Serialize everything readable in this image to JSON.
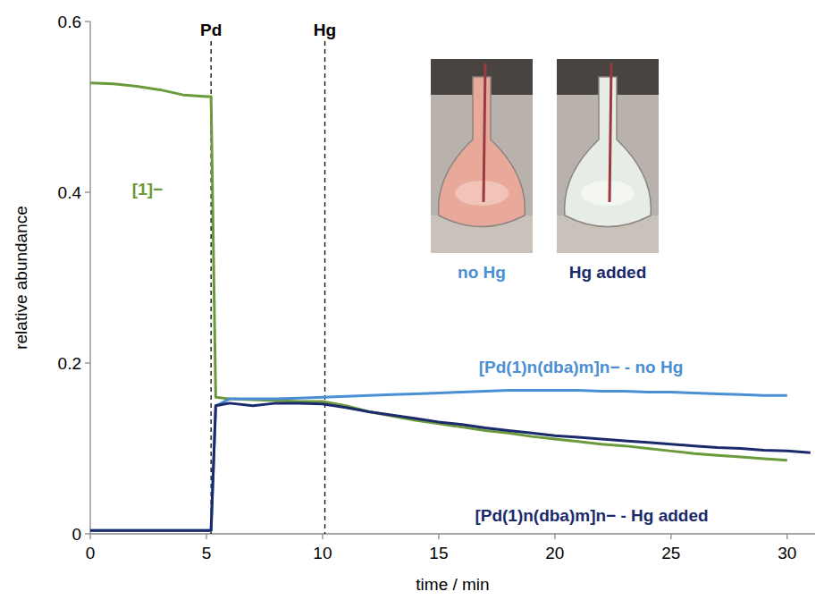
{
  "chart_data": {
    "type": "line",
    "x_label": "time / min",
    "y_label": "relative abundance",
    "xlim": [
      0,
      31.2
    ],
    "xticks": [
      0,
      5,
      10,
      15,
      20,
      25,
      30
    ],
    "ylim": [
      0,
      0.6
    ],
    "yticks": [
      0,
      0.2,
      0.4,
      0.6
    ],
    "grid": false,
    "x": [
      0,
      1,
      2,
      3,
      4,
      5,
      5.2,
      5.4,
      6,
      7,
      8,
      9,
      10,
      11,
      12,
      13,
      14,
      15,
      16,
      17,
      18,
      19,
      20,
      21,
      22,
      23,
      24,
      25,
      26,
      27,
      28,
      29,
      30,
      31
    ],
    "series": [
      {
        "name": "[1]−",
        "color": "#6a9a3c",
        "values": [
          0.528,
          0.527,
          0.524,
          0.52,
          0.514,
          0.512,
          0.512,
          0.16,
          0.158,
          0.157,
          0.156,
          0.155,
          0.155,
          0.15,
          0.143,
          0.138,
          0.133,
          0.129,
          0.125,
          0.121,
          0.118,
          0.114,
          0.111,
          0.108,
          0.105,
          0.103,
          0.1,
          0.097,
          0.094,
          0.092,
          0.09,
          0.088,
          0.086,
          null
        ]
      },
      {
        "name": "[Pd(1)n(dba)m]n− - no Hg",
        "color": "#4a8fd4",
        "values": [
          0.004,
          0.004,
          0.004,
          0.004,
          0.004,
          0.004,
          0.004,
          0.15,
          0.158,
          0.158,
          0.158,
          0.159,
          0.16,
          0.161,
          0.162,
          0.163,
          0.164,
          0.165,
          0.166,
          0.167,
          0.168,
          0.168,
          0.168,
          0.168,
          0.167,
          0.167,
          0.166,
          0.166,
          0.165,
          0.164,
          0.163,
          0.162,
          0.162,
          null
        ]
      },
      {
        "name": "[Pd(1)n(dba)m]n− - Hg added",
        "color": "#1b2a6b",
        "values": [
          0.004,
          0.004,
          0.004,
          0.004,
          0.004,
          0.004,
          0.004,
          0.15,
          0.153,
          0.15,
          0.153,
          0.153,
          0.152,
          0.148,
          0.143,
          0.139,
          0.135,
          0.131,
          0.128,
          0.124,
          0.121,
          0.118,
          0.115,
          0.113,
          0.111,
          0.109,
          0.107,
          0.105,
          0.103,
          0.101,
          0.1,
          0.098,
          0.097,
          0.095
        ]
      }
    ],
    "annotations": [
      {
        "text": "Pd",
        "x": 5.2
      },
      {
        "text": "Hg",
        "x": 10.1
      }
    ],
    "insets": [
      {
        "caption": "no Hg",
        "color": "#4a8fd4"
      },
      {
        "caption": "Hg added",
        "color": "#1b2a6b"
      }
    ]
  }
}
